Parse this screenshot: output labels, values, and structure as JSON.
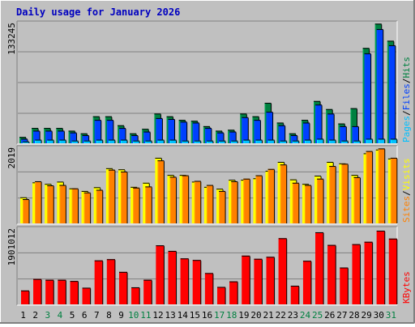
{
  "title": "Daily usage for January 2026",
  "colors": {
    "background": "#c0c0c0",
    "title": "#0000c0",
    "hits": "#008040",
    "files": "#0040ff",
    "pages": "#00c0ff",
    "visits": "#ffff00",
    "sites": "#ff8000",
    "kbytes": "#ff0000",
    "weekday_label": "#000000",
    "weekend_label": "#008040",
    "gridline": "#808080"
  },
  "chart_data": [
    {
      "type": "bar",
      "name": "hits-files-pages",
      "y_max_label": "133245",
      "ylim": [
        0,
        133245
      ],
      "right_label_parts": [
        "Pages",
        "/",
        "Files",
        "/",
        "Hits"
      ],
      "categories": [
        "1",
        "2",
        "3",
        "4",
        "5",
        "6",
        "7",
        "8",
        "9",
        "10",
        "11",
        "12",
        "13",
        "14",
        "15",
        "16",
        "17",
        "18",
        "19",
        "20",
        "21",
        "22",
        "23",
        "24",
        "25",
        "26",
        "27",
        "28",
        "29",
        "30",
        "31"
      ],
      "series": [
        {
          "name": "Hits",
          "values": [
            7000,
            17000,
            17000,
            17000,
            14000,
            11000,
            30000,
            30000,
            20000,
            11000,
            16000,
            33000,
            30000,
            26000,
            25000,
            19000,
            14000,
            15000,
            33000,
            30000,
            45000,
            23000,
            11000,
            26000,
            47000,
            38000,
            22000,
            39000,
            106000,
            133000,
            114000
          ]
        },
        {
          "name": "Files",
          "values": [
            5000,
            14000,
            14000,
            14000,
            12000,
            9000,
            26000,
            26000,
            17000,
            9000,
            13000,
            28000,
            27000,
            24000,
            23000,
            17000,
            12000,
            13000,
            29000,
            26000,
            35000,
            20000,
            9000,
            23000,
            43000,
            33000,
            19000,
            19000,
            100000,
            127000,
            109000
          ]
        },
        {
          "name": "Pages",
          "values": [
            2000,
            4000,
            4000,
            4000,
            3000,
            3000,
            4000,
            4000,
            4000,
            3000,
            3000,
            4000,
            4000,
            3000,
            3000,
            3000,
            3000,
            3000,
            4000,
            4000,
            4000,
            3000,
            3000,
            4000,
            5000,
            4000,
            3000,
            3000,
            5000,
            5000,
            5000
          ]
        }
      ]
    },
    {
      "type": "bar",
      "name": "visits-sites",
      "y_max_label": "2019",
      "ylim": [
        0,
        2019
      ],
      "right_label_parts": [
        "Sites",
        "/",
        "Visits"
      ],
      "categories": [
        "1",
        "2",
        "3",
        "4",
        "5",
        "6",
        "7",
        "8",
        "9",
        "10",
        "11",
        "12",
        "13",
        "14",
        "15",
        "16",
        "17",
        "18",
        "19",
        "20",
        "21",
        "22",
        "23",
        "24",
        "25",
        "26",
        "27",
        "28",
        "29",
        "30",
        "31"
      ],
      "series": [
        {
          "name": "Visits",
          "values": [
            700,
            1100,
            1060,
            1120,
            940,
            870,
            970,
            1480,
            1450,
            980,
            1090,
            1760,
            1300,
            1300,
            1120,
            980,
            930,
            1170,
            1170,
            1210,
            1410,
            1650,
            1180,
            1060,
            1280,
            1650,
            1610,
            1300,
            1880,
            1980,
            1740
          ]
        },
        {
          "name": "Sites",
          "values": [
            650,
            1130,
            1020,
            1030,
            940,
            830,
            900,
            1440,
            1390,
            960,
            990,
            1690,
            1250,
            1290,
            1140,
            1030,
            870,
            1130,
            1200,
            1290,
            1460,
            1580,
            1090,
            1030,
            1200,
            1540,
            1600,
            1240,
            1940,
            2010,
            1760
          ]
        }
      ]
    },
    {
      "type": "bar",
      "name": "kbytes",
      "y_max_label": "1901012",
      "ylim": [
        0,
        1901012
      ],
      "right_label_parts": [
        "KBytes"
      ],
      "categories": [
        "1",
        "2",
        "3",
        "4",
        "5",
        "6",
        "7",
        "8",
        "9",
        "10",
        "11",
        "12",
        "13",
        "14",
        "15",
        "16",
        "17",
        "18",
        "19",
        "20",
        "21",
        "22",
        "23",
        "24",
        "25",
        "26",
        "27",
        "28",
        "29",
        "30",
        "31"
      ],
      "series": [
        {
          "name": "KBytes",
          "values": [
            350000,
            640000,
            620000,
            620000,
            590000,
            420000,
            1110000,
            1140000,
            820000,
            430000,
            620000,
            1490000,
            1350000,
            1160000,
            1120000,
            790000,
            440000,
            580000,
            1230000,
            1150000,
            1200000,
            1670000,
            470000,
            1100000,
            1820000,
            1500000,
            930000,
            1520000,
            1580000,
            1860000,
            1660000
          ]
        }
      ]
    }
  ],
  "x_labels": [
    "1",
    "2",
    "3",
    "4",
    "5",
    "6",
    "7",
    "8",
    "9",
    "10",
    "11",
    "12",
    "13",
    "14",
    "15",
    "16",
    "17",
    "18",
    "19",
    "20",
    "21",
    "22",
    "23",
    "24",
    "25",
    "26",
    "27",
    "28",
    "29",
    "30",
    "31"
  ],
  "weekend_days": [
    "3",
    "4",
    "10",
    "11",
    "17",
    "18",
    "24",
    "25",
    "31"
  ]
}
